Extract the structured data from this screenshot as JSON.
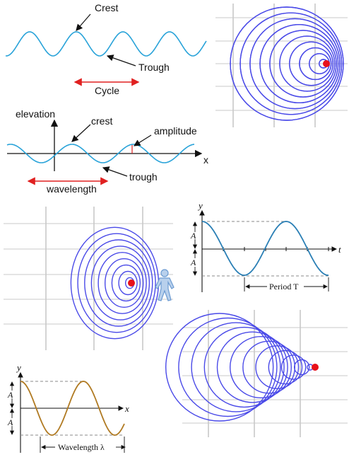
{
  "colors": {
    "wave_blue": "#29a3d9",
    "arrow_red": "#e02020",
    "ring_blue": "#4a4ae8",
    "grid": "#c8c8c8",
    "source_red": "#e8101a",
    "sine_teal": "#2a7fb5",
    "sine_brown": "#b07a22",
    "observer": "#6c9bd2"
  },
  "panel_crest_trough": {
    "crest": "Crest",
    "trough": "Trough",
    "cycle": "Cycle"
  },
  "panel_elevation": {
    "elevation": "elevation",
    "crest": "crest",
    "amplitude": "amplitude",
    "trough": "trough",
    "x_axis": "x",
    "wavelength": "wavelength"
  },
  "panel_period": {
    "y_axis": "y",
    "t_axis": "t",
    "amp_top": "A",
    "amp_bottom": "A",
    "period": "Period T"
  },
  "panel_wavelength": {
    "y_axis": "y",
    "x_axis": "x",
    "amp_top": "A",
    "amp_bottom": "A",
    "wavelength": "Wavelength λ"
  },
  "doppler": {
    "observer_icon": "person-icon",
    "source_icon": "source-dot-icon"
  }
}
